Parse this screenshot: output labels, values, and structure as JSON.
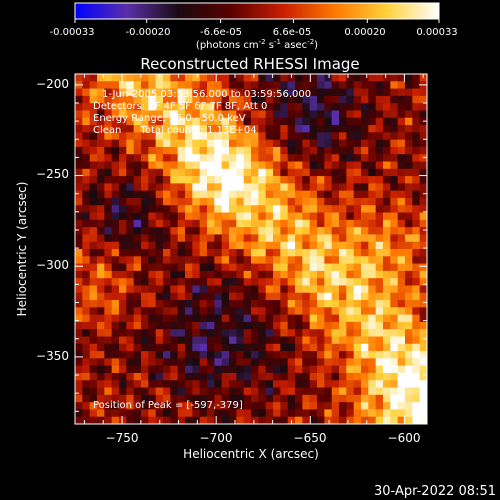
{
  "window": {
    "timestamp": "30-Apr-2022 08:51"
  },
  "colorbar": {
    "ticks": [
      "-0.00033",
      "-0.00020",
      "-6.6e-05",
      "6.6e-05",
      "0.00020",
      "0.00033"
    ],
    "tick_values": [
      -0.00033,
      -0.0002,
      -6.6e-05,
      6.6e-05,
      0.0002,
      0.00033
    ],
    "range": [
      -0.00033,
      0.00033
    ],
    "unit_prefix": "(photons cm",
    "unit_exp1": "-2",
    "unit_mid1": " s",
    "unit_exp2": "-1",
    "unit_mid2": " asec",
    "unit_exp3": "-2",
    "unit_suffix": ")",
    "colors": [
      "#0000ff",
      "#5a2fa8",
      "#1a0a10",
      "#5a0000",
      "#c81e00",
      "#ff7800",
      "#ffd23c",
      "#ffffff"
    ]
  },
  "chart_data": {
    "type": "heatmap",
    "title": "Reconstructed RHESSI Image",
    "xlabel": "Heliocentric X (arcsec)",
    "ylabel": "Heliocentric Y (arcsec)",
    "xlim": [
      -775,
      -588
    ],
    "ylim": [
      -387,
      -194
    ],
    "xticks": [
      -750,
      -700,
      -650,
      -600
    ],
    "yticks": [
      -200,
      -250,
      -300,
      -350
    ],
    "xtick_labels": [
      "−750",
      "−700",
      "−650",
      "−600"
    ],
    "ytick_labels": [
      "−200",
      "−250",
      "−300",
      "−350"
    ],
    "annotations": {
      "time_range": "1-Jun-2005 03:53:56.000 to 03:59:56.000",
      "detectors": "Detectors: 3F 4F 5F 6F 7F 8F, Att 0",
      "energy": "Energy Range: 25.0 - 50.0 keV",
      "clean": "Clean      Total counts: 1.13E+04",
      "peak": "Position of Peak = [-597,-379]"
    },
    "peak_position": [
      -597,
      -379
    ],
    "colormap": "blue-purple-black-red-yellow-white"
  }
}
